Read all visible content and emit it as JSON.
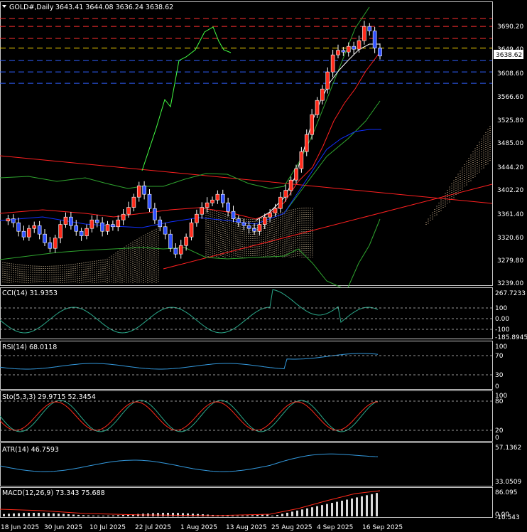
{
  "header": {
    "symbol": "GOLD#,Daily",
    "ohlc": "3643.41 3644.08 3636.24 3638.62"
  },
  "price_axis": {
    "ticks": [
      "3690.20",
      "3649.40",
      "3608.60",
      "3566.60",
      "3525.80",
      "3485.00",
      "3444.20",
      "3402.20",
      "3361.40",
      "3320.60",
      "3279.80",
      "3239.00"
    ],
    "current_price": "3638.62"
  },
  "indicators": {
    "cci": {
      "label": "CCI(14) 31.9353",
      "ticks": [
        "267.7233",
        "100",
        "0.00",
        "-100",
        "-185.8945"
      ]
    },
    "rsi": {
      "label": "RSI(14) 68.0118",
      "ticks": [
        "100",
        "70",
        "30",
        "0"
      ]
    },
    "sto": {
      "label": "Sto(5,3,3) 29.9715 52.3454",
      "ticks": [
        "100",
        "80",
        "20",
        "0"
      ]
    },
    "atr": {
      "label": "ATR(14) 46.7593",
      "ticks": [
        "57.1362",
        "33.0509"
      ]
    },
    "macd": {
      "label": "MACD(12,26,9) 73.343 75.688",
      "ticks": [
        "86.095",
        "0.00",
        "-10.543"
      ]
    }
  },
  "time_axis": [
    "18 Jun 2025",
    "30 Jun 2025",
    "10 Jul 2025",
    "22 Jul 2025",
    "1 Aug 2025",
    "13 Aug 2025",
    "25 Aug 2025",
    "4 Sep 2025",
    "16 Sep 2025"
  ],
  "colors": {
    "bull": "#ff2a1a",
    "bear": "#3050ff",
    "grid": "#c8c8c8",
    "level_red": "#ff3030",
    "level_blue": "#3060ff",
    "level_yellow": "#ffdd00",
    "bb_outer": "#2fa52f",
    "bb_upper_hi": "#44ff44",
    "osc_main": "#3399dd",
    "sig_red": "#ff2a1a"
  },
  "chart_data": {
    "type": "candlestick",
    "title": "GOLD#,Daily",
    "ylim": [
      3239.0,
      3710.0
    ],
    "last": {
      "open": 3643.41,
      "high": 3644.08,
      "low": 3636.24,
      "close": 3638.62
    },
    "horizontal_levels": [
      3704,
      3690,
      3669,
      3652,
      3630,
      3610,
      3590
    ],
    "panels": {
      "cci": {
        "value": 31.9353,
        "range": [
          -185.8945,
          267.7233
        ]
      },
      "rsi": {
        "value": 68.0118,
        "range": [
          0,
          100
        ]
      },
      "stochastic": {
        "k": 29.9715,
        "d": 52.3454,
        "range": [
          0,
          100
        ]
      },
      "atr": {
        "value": 46.7593,
        "range": [
          33.0509,
          57.1362
        ]
      },
      "macd": {
        "main": 73.343,
        "signal": 75.688,
        "range": [
          -10.543,
          86.095
        ]
      }
    }
  }
}
